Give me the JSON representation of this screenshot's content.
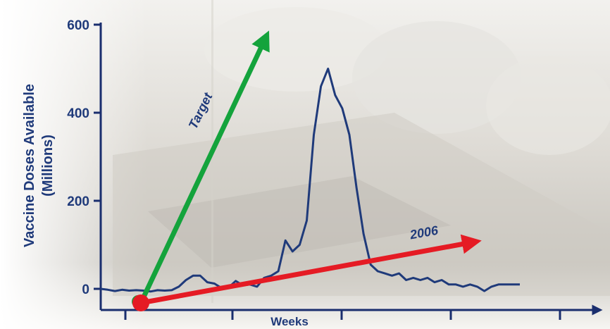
{
  "chart_data": {
    "type": "line",
    "xlabel": "Weeks",
    "ylabel_line1": "Vaccine Doses Available",
    "ylabel_line2": "(Millions)",
    "yticks": [
      0,
      200,
      400,
      600
    ],
    "ylim": [
      -30,
      600
    ],
    "x_tick_count": 5,
    "grid": false,
    "series": [
      {
        "values": [
          0,
          -2,
          -5,
          -2,
          -4,
          -3,
          -4,
          -6,
          -3,
          -4,
          -3,
          5,
          20,
          30,
          30,
          15,
          12,
          2,
          3,
          18,
          8,
          10,
          5,
          25,
          30,
          40,
          110,
          85,
          100,
          155,
          350,
          460,
          500,
          440,
          410,
          350,
          230,
          125,
          55,
          40,
          35,
          30,
          35,
          20,
          25,
          20,
          25,
          15,
          20,
          10,
          10,
          5,
          10,
          5,
          -5,
          5,
          10,
          10,
          10,
          10
        ],
        "color": "#1f3a7a"
      }
    ],
    "annotations": [
      {
        "label": "Target",
        "color": "#14a33c",
        "slope": "steep"
      },
      {
        "label": "2006",
        "color": "#e51b24",
        "slope": "shallow"
      }
    ],
    "origin_marker_color": "#e51b24"
  },
  "colors": {
    "axis": "#1a2e6e",
    "text": "#1f3a7a",
    "photo_tone": "#dcd9d2"
  }
}
